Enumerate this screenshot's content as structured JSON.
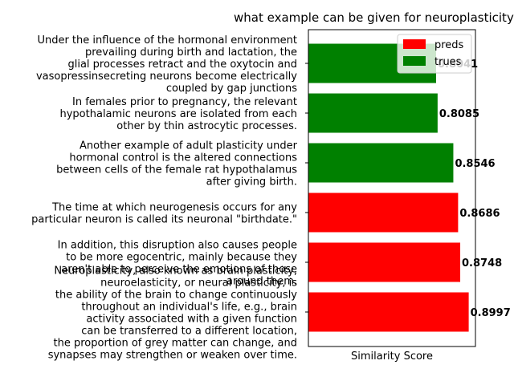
{
  "chart_data": {
    "type": "bar",
    "orientation": "horizontal",
    "title": "what example can be given for neuroplasticity",
    "xlabel": "Similarity Score",
    "ylabel": "",
    "xlim": [
      0,
      1
    ],
    "legend": {
      "placement": "top-right",
      "entries": [
        {
          "label": "preds",
          "color": "#ff0000"
        },
        {
          "label": "trues",
          "color": "#008000"
        }
      ]
    },
    "bars": [
      {
        "label": "Neuroplasticity, also known as brain plasticity,\nneuroelasticity, or neural plasticity, is\nthe ability of the brain to change continuously\nthroughout an individual's life, e.g., brain\nactivity associated with a given function\ncan be transferred to a different location,\nthe proportion of grey matter can change, and\nsynapses may strengthen or weaken over time.",
        "value": 0.8997,
        "value_label": "0.8997",
        "group": "preds"
      },
      {
        "label": "In addition, this disruption also causes people\nto be more egocentric, mainly because they\naren't able to perceive the emotions of those\naround them.",
        "value": 0.8748,
        "value_label": "0.8748",
        "group": "preds"
      },
      {
        "label": "The time at which neurogenesis occurs for any\nparticular neuron is called its neuronal \"birthdate.\"",
        "value": 0.8686,
        "value_label": "0.8686",
        "group": "preds"
      },
      {
        "label": "Another example of adult plasticity under\nhormonal control is the altered connections\nbetween cells of the female rat hypothalamus\nafter giving birth.",
        "value": 0.8546,
        "value_label": "0.8546",
        "group": "trues"
      },
      {
        "label": "In females prior to pregnancy, the relevant\nhypothalamic neurons are isolated from each\nother by thin astrocytic processes.",
        "value": 0.8085,
        "value_label": "0.8085",
        "group": "trues"
      },
      {
        "label": "Under the influence of the hormonal environment\nprevailing during birth and lactation, the\nglial processes retract and the oxytocin and\nvasopressinsecreting neurons become electrically\ncoupled by gap junctions",
        "value": 0.8041,
        "value_label": "0.8041",
        "group": "trues"
      }
    ]
  }
}
